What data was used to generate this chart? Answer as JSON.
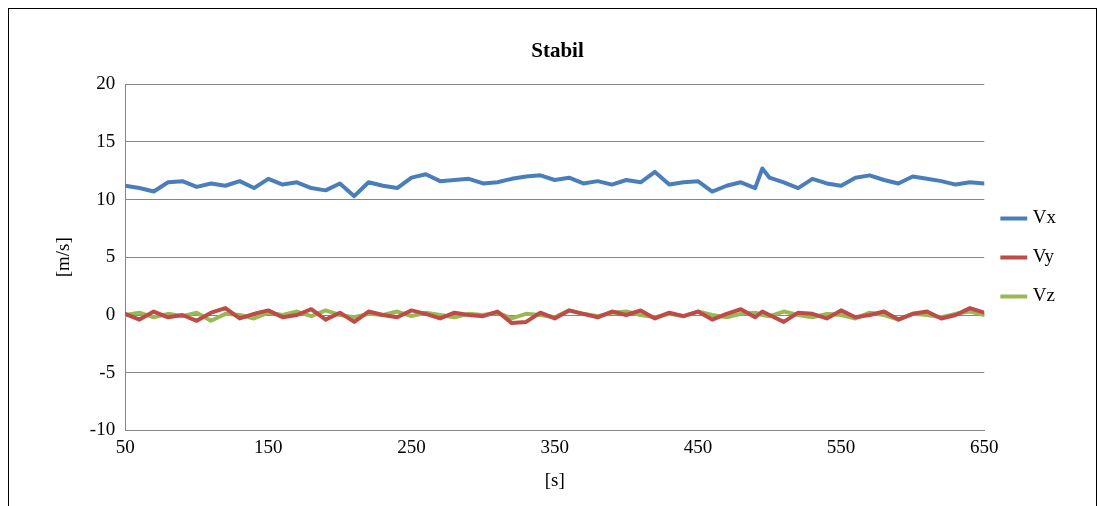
{
  "chart_data": {
    "type": "line",
    "title": "Stabil",
    "xlabel": "[s]",
    "ylabel": "[m/s]",
    "x": [
      50,
      60,
      70,
      80,
      90,
      100,
      110,
      120,
      130,
      140,
      150,
      160,
      170,
      180,
      190,
      200,
      210,
      220,
      230,
      240,
      250,
      260,
      270,
      280,
      290,
      300,
      310,
      320,
      330,
      340,
      350,
      360,
      370,
      380,
      390,
      400,
      410,
      420,
      430,
      440,
      450,
      460,
      470,
      480,
      490,
      495,
      500,
      510,
      520,
      530,
      540,
      550,
      560,
      570,
      580,
      590,
      600,
      610,
      620,
      630,
      640,
      650
    ],
    "series": [
      {
        "name": "Vx",
        "color": "#4a7ebb",
        "values": [
          11.2,
          11.0,
          10.7,
          11.5,
          11.6,
          11.1,
          11.4,
          11.2,
          11.6,
          11.0,
          11.8,
          11.3,
          11.5,
          11.0,
          10.8,
          11.4,
          10.3,
          11.5,
          11.2,
          11.0,
          11.9,
          12.2,
          11.6,
          11.7,
          11.8,
          11.4,
          11.5,
          11.8,
          12.0,
          12.1,
          11.7,
          11.9,
          11.4,
          11.6,
          11.3,
          11.7,
          11.5,
          12.4,
          11.3,
          11.5,
          11.6,
          10.7,
          11.2,
          11.5,
          11.0,
          12.7,
          11.9,
          11.5,
          11.0,
          11.8,
          11.4,
          11.2,
          11.9,
          12.1,
          11.7,
          11.4,
          12.0,
          11.8,
          11.6,
          11.3,
          11.5,
          11.4
        ]
      },
      {
        "name": "Vy",
        "color": "#be4b48",
        "values": [
          0.1,
          -0.4,
          0.3,
          -0.2,
          0.0,
          -0.5,
          0.2,
          0.6,
          -0.3,
          0.1,
          0.4,
          -0.2,
          0.0,
          0.5,
          -0.4,
          0.2,
          -0.6,
          0.3,
          0.0,
          -0.2,
          0.4,
          0.1,
          -0.3,
          0.2,
          0.0,
          -0.1,
          0.3,
          -0.7,
          -0.6,
          0.2,
          -0.3,
          0.4,
          0.1,
          -0.2,
          0.3,
          0.0,
          0.4,
          -0.3,
          0.2,
          -0.1,
          0.3,
          -0.4,
          0.1,
          0.5,
          -0.2,
          0.3,
          0.0,
          -0.6,
          0.2,
          0.1,
          -0.3,
          0.4,
          -0.2,
          0.0,
          0.3,
          -0.4,
          0.1,
          0.3,
          -0.3,
          0.0,
          0.6,
          0.2
        ]
      },
      {
        "name": "Vz",
        "color": "#98b954",
        "values": [
          0.0,
          0.2,
          -0.2,
          0.1,
          -0.1,
          0.2,
          -0.5,
          0.1,
          0.0,
          -0.3,
          0.2,
          0.0,
          0.3,
          -0.1,
          0.4,
          0.0,
          -0.2,
          0.1,
          0.0,
          0.3,
          -0.1,
          0.2,
          0.0,
          -0.2,
          0.1,
          0.0,
          0.2,
          -0.3,
          0.1,
          0.0,
          -0.2,
          0.4,
          0.1,
          -0.1,
          0.2,
          0.3,
          0.0,
          -0.2,
          0.1,
          -0.1,
          0.3,
          0.0,
          -0.2,
          0.1,
          0.2,
          0.0,
          -0.1,
          0.3,
          0.0,
          -0.2,
          0.1,
          0.0,
          -0.3,
          0.2,
          0.0,
          -0.4,
          0.1,
          0.0,
          -0.2,
          0.1,
          0.3,
          0.0
        ]
      }
    ],
    "xlim": [
      50,
      650
    ],
    "xticks": [
      50,
      150,
      250,
      350,
      450,
      550,
      650
    ],
    "ylim": [
      -10,
      20
    ],
    "yticks": [
      -10,
      -5,
      0,
      5,
      10,
      15,
      20
    ],
    "grid": "y",
    "legend": "right",
    "marker": "none",
    "line_style": "solid"
  }
}
